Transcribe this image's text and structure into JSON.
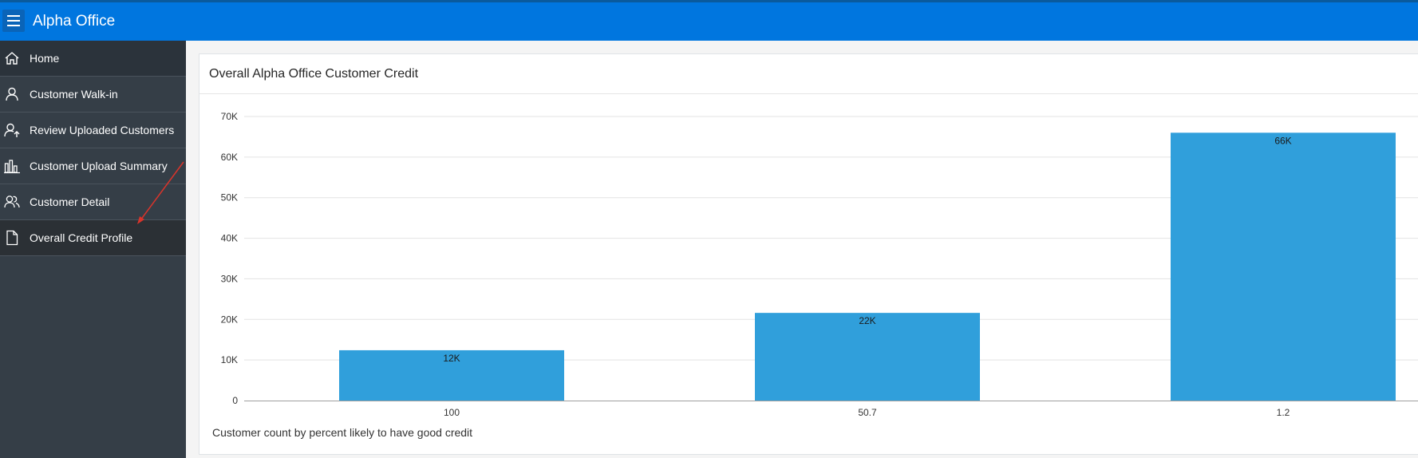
{
  "app": {
    "title": "Alpha Office"
  },
  "nav": {
    "items": [
      {
        "label": "Home",
        "icon": "home-icon"
      },
      {
        "label": "Customer Walk-in",
        "icon": "user-icon"
      },
      {
        "label": "Review Uploaded Customers",
        "icon": "user-upload-icon"
      },
      {
        "label": "Customer Upload Summary",
        "icon": "bar-chart-icon"
      },
      {
        "label": "Customer Detail",
        "icon": "users-icon"
      },
      {
        "label": "Overall Credit Profile",
        "icon": "document-icon"
      }
    ],
    "active_index": 5
  },
  "region": {
    "title": "Overall Alpha Office Customer Credit",
    "footer": "Customer count by percent likely to have good credit"
  },
  "colors": {
    "header": "#0076df",
    "sidebar": "#353e47",
    "bar": "#309fdb",
    "annotation_arrow": "#d9342b"
  },
  "chart_data": {
    "type": "bar",
    "categories": [
      "100",
      "50.7",
      "1.2"
    ],
    "values": [
      12400,
      21600,
      66000
    ],
    "data_labels": [
      "12K",
      "22K",
      "66K"
    ],
    "yticks": [
      0,
      10000,
      20000,
      30000,
      40000,
      50000,
      60000,
      70000
    ],
    "ytick_labels": [
      "0",
      "10K",
      "20K",
      "30K",
      "40K",
      "50K",
      "60K",
      "70K"
    ],
    "ylim": [
      0,
      70000
    ],
    "grid": true,
    "xlabel": "",
    "ylabel": ""
  }
}
